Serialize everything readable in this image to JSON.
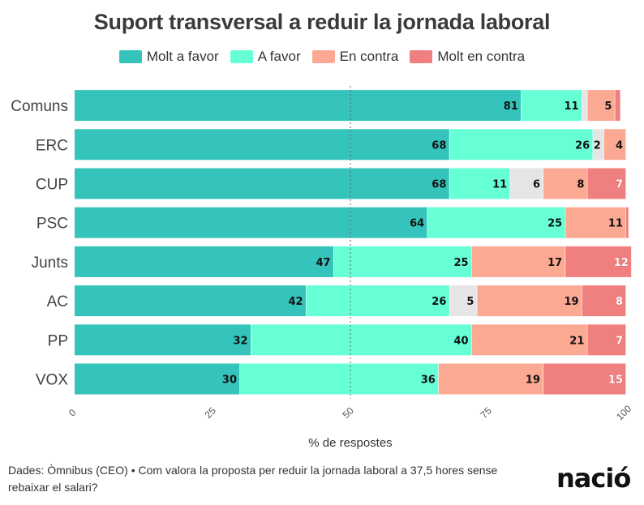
{
  "chart_data": {
    "type": "bar",
    "orientation": "horizontal",
    "stacked": true,
    "title": "Suport transversal a reduir la jornada laboral",
    "xlabel": "% de respostes",
    "ylabel": "",
    "xlim": [
      0,
      100
    ],
    "xticks": [
      "0",
      "25",
      "50",
      "75",
      "100"
    ],
    "reference_line": 50,
    "legend_position": "top",
    "categories": [
      "Comuns",
      "ERC",
      "CUP",
      "PSC",
      "Junts",
      "AC",
      "PP",
      "VOX"
    ],
    "series": [
      {
        "name": "Molt a favor",
        "color": "#35c4bb",
        "values": [
          81,
          68,
          68,
          64,
          47,
          42,
          32,
          30
        ],
        "labels": [
          "81",
          "68",
          "68",
          "64",
          "47",
          "42",
          "32",
          "30"
        ]
      },
      {
        "name": "A favor",
        "color": "#66ffd6",
        "values": [
          11,
          26,
          11,
          25,
          25,
          26,
          40,
          36
        ],
        "labels": [
          "11",
          "26",
          "11",
          "25",
          "25",
          "26",
          "40",
          "36"
        ]
      },
      {
        "name": "",
        "color": "#e5e5e5",
        "values": [
          1,
          2,
          6,
          0,
          0,
          5,
          0,
          0
        ],
        "labels": [
          "",
          "2",
          "6",
          "",
          "",
          "5",
          "",
          ""
        ]
      },
      {
        "name": "En contra",
        "color": "#fca993",
        "values": [
          5,
          4,
          8,
          11,
          17,
          19,
          21,
          19
        ],
        "labels": [
          "5",
          "4",
          "8",
          "11",
          "17",
          "19",
          "21",
          "19"
        ]
      },
      {
        "name": "Molt en contra",
        "color": "#f07f7f",
        "values": [
          1,
          0,
          7,
          0.5,
          12,
          8,
          7,
          15
        ],
        "labels": [
          "",
          "",
          "7",
          "",
          "12",
          "8",
          "7",
          "15"
        ]
      }
    ]
  },
  "footer": {
    "source_text": "Dades: Òmnibus (CEO) • Com valora la proposta per reduir la jornada laboral a 37,5 hores sense rebaixar el salari?",
    "logo_text": "nació"
  }
}
